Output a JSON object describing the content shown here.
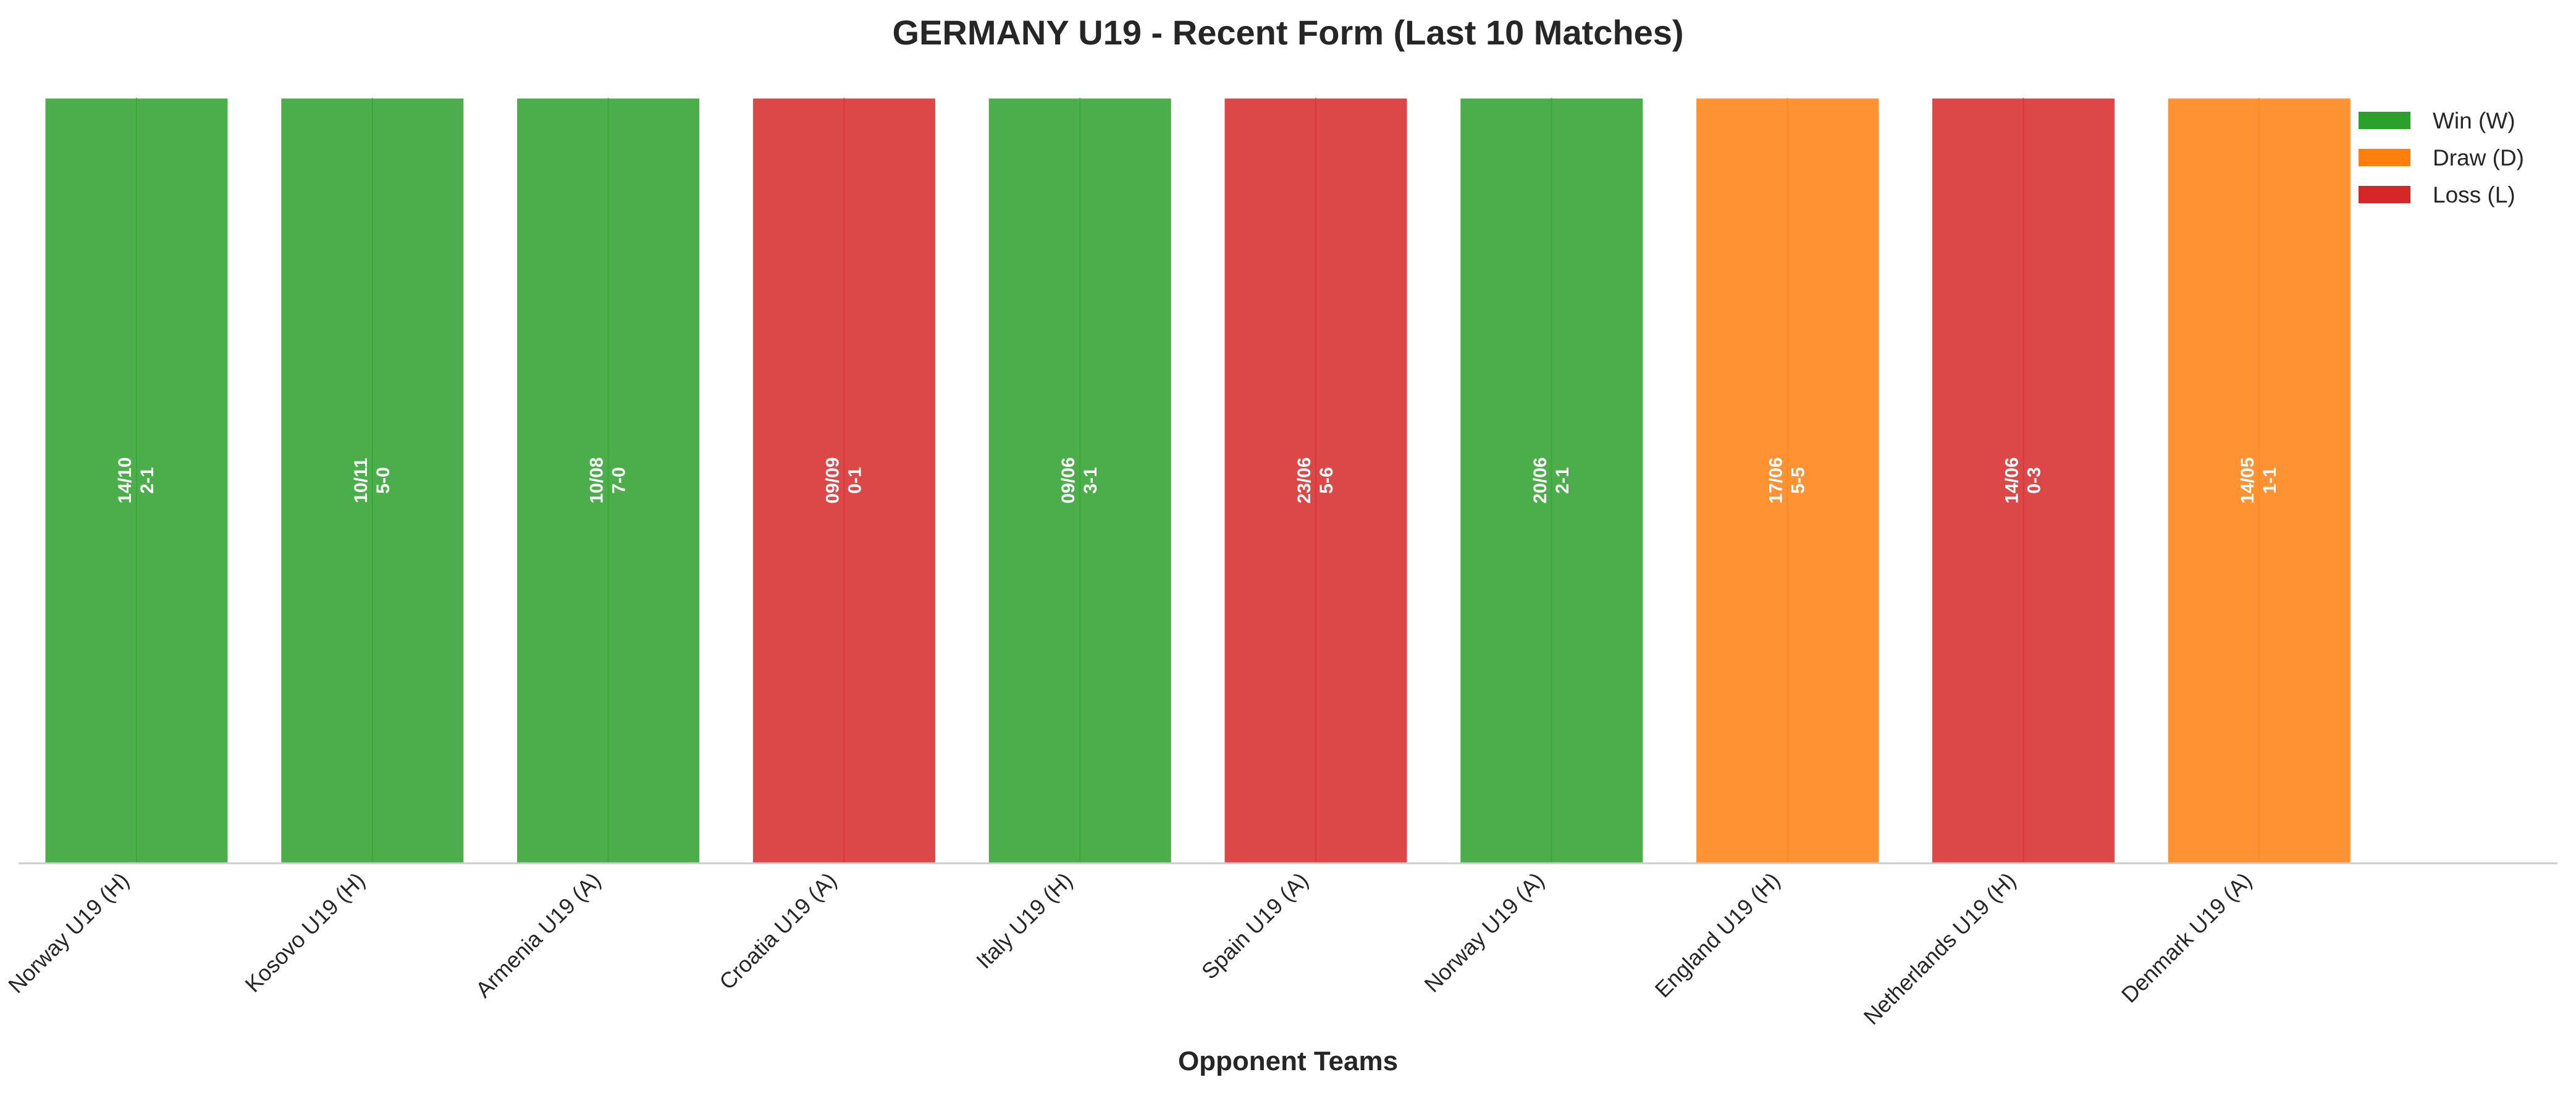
{
  "chart_data": {
    "type": "bar",
    "title": "GERMANY U19 - Recent Form (Last 10 Matches)",
    "xlabel": "Opponent Teams",
    "ylabel": "",
    "ylim": [
      0,
      1
    ],
    "grid": false,
    "legend_position": "top-right",
    "categories": [
      "Norway U19 (H)",
      "Kosovo U19 (H)",
      "Armenia U19 (A)",
      "Croatia U19 (A)",
      "Italy U19 (H)",
      "Spain U19 (A)",
      "Norway U19 (A)",
      "England U19 (H)",
      "Netherlands U19 (H)",
      "Denmark U19 (A)"
    ],
    "values": [
      1,
      1,
      1,
      1,
      1,
      1,
      1,
      1,
      1,
      1
    ],
    "results": [
      "W",
      "W",
      "W",
      "L",
      "W",
      "L",
      "W",
      "D",
      "L",
      "D"
    ],
    "dates": [
      "14/10",
      "10/11",
      "10/08",
      "09/09",
      "09/06",
      "23/06",
      "20/06",
      "17/06",
      "14/06",
      "14/05"
    ],
    "scores": [
      "2-1",
      "5-0",
      "7-0",
      "0-1",
      "3-1",
      "5-6",
      "2-1",
      "5-5",
      "0-3",
      "1-1"
    ],
    "legend": [
      {
        "key": "W",
        "label": "Win (W)",
        "color": "#2ca02c"
      },
      {
        "key": "D",
        "label": "Draw (D)",
        "color": "#ff7f0e"
      },
      {
        "key": "L",
        "label": "Loss (L)",
        "color": "#d62728"
      }
    ]
  }
}
